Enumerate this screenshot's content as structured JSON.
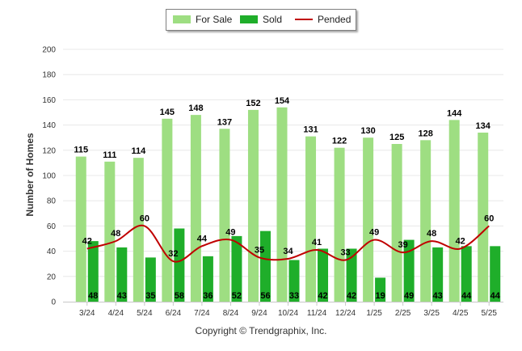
{
  "legend": {
    "for_sale": "For Sale",
    "sold": "Sold",
    "pended": "Pended"
  },
  "copyright": "Copyright © Trendgraphix, Inc.",
  "colors": {
    "for_sale": "#9ede82",
    "sold": "#1fae2a",
    "pended": "#c00000",
    "grid": "#e8e8e8"
  },
  "chart_data": {
    "type": "bar",
    "ylabel": "Number of Homes",
    "ylim": [
      0,
      200
    ],
    "yticks": [
      0,
      20,
      40,
      60,
      80,
      100,
      120,
      140,
      160,
      180,
      200
    ],
    "grid": true,
    "legend_position": "top-center",
    "categories": [
      "3/24",
      "4/24",
      "5/24",
      "6/24",
      "7/24",
      "8/24",
      "9/24",
      "10/24",
      "11/24",
      "12/24",
      "1/25",
      "2/25",
      "3/25",
      "4/25",
      "5/25"
    ],
    "series": [
      {
        "name": "For Sale",
        "kind": "bar",
        "values": [
          115,
          111,
          114,
          145,
          148,
          137,
          152,
          154,
          131,
          122,
          130,
          125,
          128,
          144,
          134
        ]
      },
      {
        "name": "Sold",
        "kind": "bar",
        "values": [
          48,
          43,
          35,
          58,
          36,
          52,
          56,
          33,
          42,
          42,
          19,
          49,
          43,
          44,
          44
        ]
      },
      {
        "name": "Pended",
        "kind": "line",
        "values": [
          42,
          48,
          60,
          32,
          44,
          49,
          35,
          34,
          41,
          33,
          49,
          39,
          48,
          42,
          60
        ]
      }
    ]
  }
}
